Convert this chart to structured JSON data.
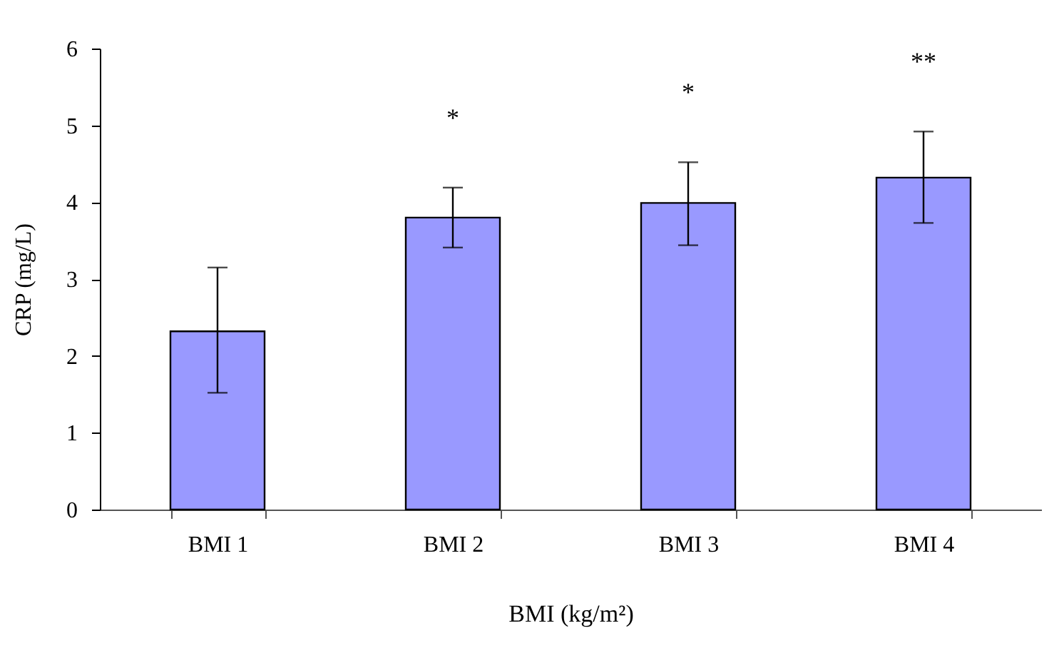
{
  "chart_data": {
    "type": "bar",
    "xlabel": "BMI (kg/m²)",
    "ylabel": "CRP (mg/L)",
    "categories": [
      "BMI 1",
      "BMI 2",
      "BMI 3",
      "BMI 4"
    ],
    "values": [
      2.32,
      3.8,
      3.99,
      4.32
    ],
    "color": "#9999ff",
    "errors": [
      [
        1.52,
        3.15
      ],
      [
        3.41,
        4.19
      ],
      [
        3.44,
        4.52
      ],
      [
        3.73,
        4.92
      ]
    ],
    "ylim": [
      0,
      6
    ],
    "yticks": [
      0,
      1,
      2,
      3,
      4,
      5,
      6
    ],
    "grid": false,
    "annotations": [
      "*",
      "*",
      "**"
    ]
  }
}
